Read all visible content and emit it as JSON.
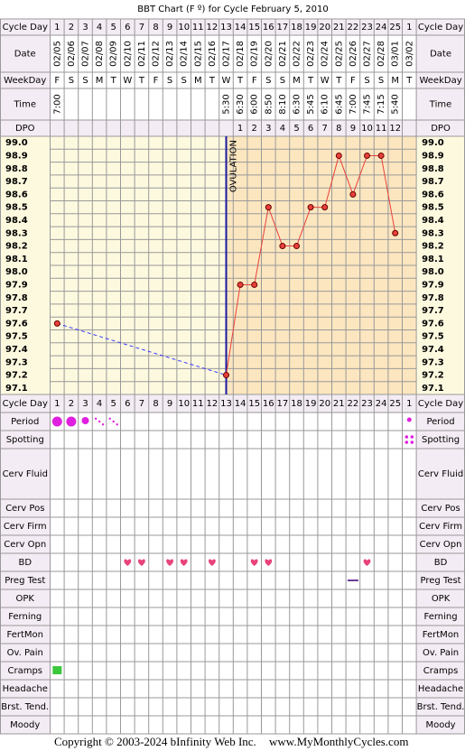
{
  "title": "BBT Chart (F º) for Cycle February 5, 2010",
  "labels": {
    "cycle_day": "Cycle Day",
    "date": "Date",
    "weekday": "WeekDay",
    "time": "Time",
    "dpo": "DPO"
  },
  "cycle_days": [
    1,
    2,
    3,
    4,
    5,
    6,
    7,
    8,
    9,
    10,
    11,
    12,
    13,
    14,
    15,
    16,
    17,
    18,
    19,
    20,
    21,
    22,
    23,
    24,
    25,
    1
  ],
  "dates": [
    "02/05",
    "02/06",
    "02/07",
    "02/08",
    "02/09",
    "02/10",
    "02/11",
    "02/12",
    "02/13",
    "02/14",
    "02/15",
    "02/16",
    "02/17",
    "02/18",
    "02/19",
    "02/20",
    "02/21",
    "02/22",
    "02/23",
    "02/24",
    "02/25",
    "02/26",
    "02/27",
    "02/28",
    "03/01",
    "03/02"
  ],
  "weekdays": [
    "F",
    "S",
    "S",
    "M",
    "T",
    "W",
    "T",
    "F",
    "S",
    "S",
    "M",
    "T",
    "W",
    "T",
    "F",
    "S",
    "S",
    "M",
    "T",
    "W",
    "T",
    "F",
    "S",
    "S",
    "M",
    "T"
  ],
  "times": [
    "7:00",
    null,
    null,
    null,
    null,
    null,
    null,
    null,
    null,
    null,
    null,
    null,
    "5:30",
    "6:30",
    "6:00",
    "8:50",
    "8:10",
    "6:30",
    "5:45",
    "6:10",
    "6:45",
    "7:00",
    "7:45",
    "7:15",
    "5:40",
    null
  ],
  "dpo": [
    null,
    null,
    null,
    null,
    null,
    null,
    null,
    null,
    null,
    null,
    null,
    null,
    null,
    1,
    2,
    3,
    4,
    5,
    6,
    7,
    8,
    9,
    10,
    11,
    12,
    null
  ],
  "chart_data": {
    "type": "line",
    "annotation": "OVULATION",
    "ovulation_day": 13,
    "ylim": [
      97.05,
      99.05
    ],
    "yticks": [
      {
        "value": 99,
        "label": "99.0"
      },
      98.9,
      98.8,
      98.7,
      98.6,
      98.5,
      98.4,
      98.3,
      98.2,
      98.1,
      {
        "value": 98,
        "label": "98.0"
      },
      97.9,
      97.8,
      97.7,
      97.6,
      97.5,
      97.4,
      97.3,
      97.2,
      97.1
    ],
    "grid": true,
    "series": [
      {
        "color": "#e8413a",
        "values": [
          97.6,
          null,
          null,
          null,
          null,
          null,
          null,
          null,
          null,
          null,
          null,
          null,
          97.2,
          97.9,
          97.9,
          98.5,
          98.2,
          98.2,
          98.5,
          98.5,
          98.9,
          98.6,
          98.9,
          98.9,
          98.3,
          null
        ]
      }
    ]
  },
  "symptoms": [
    {
      "label": "Period",
      "entries": [
        {
          "col": 0,
          "kind": "heavy"
        },
        {
          "col": 1,
          "kind": "heavy"
        },
        {
          "col": 2,
          "kind": "medium"
        },
        {
          "col": 3,
          "kind": "light"
        },
        {
          "col": 4,
          "kind": "light"
        },
        {
          "col": 25,
          "kind": "dot"
        }
      ]
    },
    {
      "label": "Spotting",
      "entries": [
        {
          "col": 25,
          "kind": "spotting"
        }
      ]
    },
    {
      "label": "Cerv Fluid",
      "entries": []
    },
    {
      "label": "Cerv Pos",
      "entries": []
    },
    {
      "label": "Cerv Firm",
      "entries": []
    },
    {
      "label": "Cerv Opn",
      "entries": []
    },
    {
      "label": "BD",
      "entries": [
        {
          "col": 5,
          "kind": "heart"
        },
        {
          "col": 6,
          "kind": "heart"
        },
        {
          "col": 8,
          "kind": "heart"
        },
        {
          "col": 9,
          "kind": "heart"
        },
        {
          "col": 11,
          "kind": "heart"
        },
        {
          "col": 14,
          "kind": "heart"
        },
        {
          "col": 15,
          "kind": "heart"
        },
        {
          "col": 22,
          "kind": "heart"
        }
      ]
    },
    {
      "label": "Preg Test",
      "entries": [
        {
          "col": 21,
          "kind": "dash"
        }
      ]
    },
    {
      "label": "OPK",
      "entries": []
    },
    {
      "label": "Ferning",
      "entries": []
    },
    {
      "label": "FertMon",
      "entries": []
    },
    {
      "label": "Ov. Pain",
      "entries": []
    },
    {
      "label": "Cramps",
      "entries": [
        {
          "col": 0,
          "kind": "square"
        }
      ]
    },
    {
      "label": "Headache",
      "entries": []
    },
    {
      "label": "Brst. Tend.",
      "entries": []
    },
    {
      "label": "Moody",
      "entries": []
    }
  ],
  "footer": {
    "copyright": "Copyright © 2003-2024 bInfinity Web Inc.",
    "site": "www.MyMonthlyCycles.com"
  }
}
